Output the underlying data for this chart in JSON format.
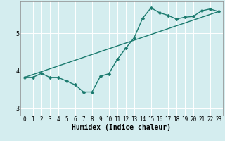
{
  "title": "",
  "xlabel": "Humidex (Indice chaleur)",
  "ylabel": "",
  "background_color": "#d4edef",
  "grid_color": "#ffffff",
  "line_color": "#1a7a6e",
  "xlim": [
    -0.5,
    23.5
  ],
  "ylim": [
    2.8,
    5.85
  ],
  "yticks": [
    3,
    4,
    5
  ],
  "xticks": [
    0,
    1,
    2,
    3,
    4,
    5,
    6,
    7,
    8,
    9,
    10,
    11,
    12,
    13,
    14,
    15,
    16,
    17,
    18,
    19,
    20,
    21,
    22,
    23
  ],
  "curve1_x": [
    0,
    1,
    2,
    3,
    4,
    5,
    6,
    7,
    8,
    9,
    10,
    11,
    12,
    13,
    14,
    15,
    16,
    17,
    18,
    19,
    20,
    21,
    22,
    23
  ],
  "curve1_y": [
    3.82,
    3.82,
    3.93,
    3.82,
    3.82,
    3.72,
    3.62,
    3.43,
    3.43,
    3.85,
    3.92,
    4.3,
    4.6,
    4.88,
    5.4,
    5.68,
    5.55,
    5.48,
    5.38,
    5.43,
    5.45,
    5.6,
    5.65,
    5.58
  ],
  "curve2_x": [
    0,
    23
  ],
  "curve2_y": [
    3.82,
    5.58
  ],
  "marker": "D",
  "markersize": 2.5,
  "linewidth": 1.0,
  "tick_fontsize": 5.5,
  "xlabel_fontsize": 7
}
